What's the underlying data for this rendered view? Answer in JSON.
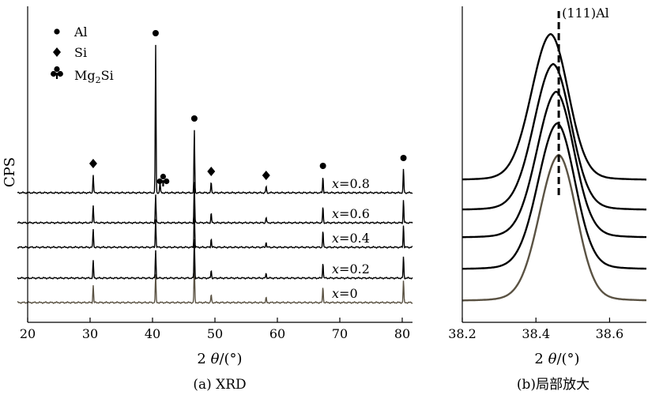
{
  "chart_data": [
    {
      "type": "line",
      "panel": "a",
      "caption": "(a) XRD",
      "xlabel_italic": "θ",
      "xlabel_prefix": "2 ",
      "xlabel_suffix": "/(°)",
      "ylabel": "CPS",
      "xlim": [
        20,
        82
      ],
      "xticks": [
        20,
        30,
        40,
        50,
        60,
        70,
        80
      ],
      "legend": {
        "placement": "top-left",
        "entries": [
          {
            "symbol": "circle",
            "label": "Al"
          },
          {
            "symbol": "diamond",
            "label": "Si"
          },
          {
            "symbol": "club",
            "label": "Mg",
            "sub": "2",
            "tail": "Si"
          }
        ]
      },
      "peaks": [
        {
          "x": 30.5,
          "h": [
            22,
            22,
            23,
            23,
            23
          ]
        },
        {
          "x": 40.5,
          "h": [
            35,
            35,
            36,
            36,
            188
          ]
        },
        {
          "x": 41.2,
          "h": [
            0,
            0,
            0,
            0,
            14
          ]
        },
        {
          "x": 46.7,
          "h": [
            48,
            49,
            50,
            52,
            80
          ]
        },
        {
          "x": 49.4,
          "h": [
            10,
            10,
            11,
            12,
            13
          ]
        },
        {
          "x": 58.2,
          "h": [
            6,
            6,
            7,
            7,
            8
          ]
        },
        {
          "x": 67.3,
          "h": [
            20,
            20,
            21,
            20,
            20
          ]
        },
        {
          "x": 80.2,
          "h": [
            28,
            27,
            28,
            29,
            30
          ]
        }
      ],
      "series": [
        {
          "label": "x=0",
          "var": "x",
          "value": "0",
          "color": "#5a5243"
        },
        {
          "label": "x=0.2",
          "var": "x",
          "value": "0.2",
          "color": "#000000"
        },
        {
          "label": "x=0.4",
          "var": "x",
          "value": "0.4",
          "color": "#000000"
        },
        {
          "label": "x=0.6",
          "var": "x",
          "value": "0.6",
          "color": "#000000"
        },
        {
          "label": "x=0.8",
          "var": "x",
          "value": "0.8",
          "color": "#000000"
        }
      ],
      "markers": [
        {
          "symbol": "diamond",
          "x": 30.5
        },
        {
          "symbol": "circle",
          "x": 40.5
        },
        {
          "symbol": "club",
          "x": 41.7
        },
        {
          "symbol": "circle",
          "x": 46.7
        },
        {
          "symbol": "diamond",
          "x": 49.4
        },
        {
          "symbol": "diamond",
          "x": 58.2
        },
        {
          "symbol": "circle",
          "x": 67.3
        },
        {
          "symbol": "circle",
          "x": 80.2
        }
      ]
    },
    {
      "type": "line",
      "panel": "b",
      "caption": "(b)局部放大",
      "xlabel_italic": "θ",
      "xlabel_prefix": "2 ",
      "xlabel_suffix": "/(°)",
      "xlim": [
        38.2,
        38.7
      ],
      "xticks": [
        38.2,
        38.4,
        38.6
      ],
      "reference_line": {
        "x": 38.462,
        "label": "(111)Al"
      },
      "peaks": [
        38.462,
        38.458,
        38.455,
        38.447,
        38.44
      ],
      "series_colors": [
        "#5a5243",
        "#000000",
        "#000000",
        "#000000",
        "#000000"
      ]
    }
  ]
}
